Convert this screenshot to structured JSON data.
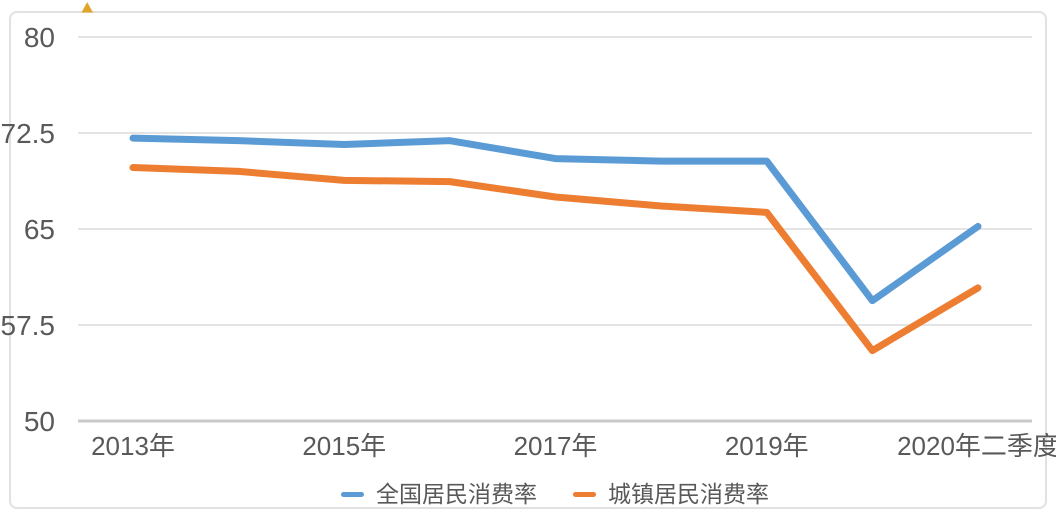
{
  "chart_data": {
    "type": "line",
    "title": "",
    "xlabel": "",
    "ylabel": "",
    "categories": [
      "2013年",
      "",
      "2015年",
      "",
      "2017年",
      "",
      "2019年",
      "",
      "2020年二季度"
    ],
    "series": [
      {
        "name": "全国居民消费率",
        "color": "#5B9BD5",
        "values": [
          72.1,
          71.9,
          71.6,
          71.9,
          70.5,
          70.3,
          70.3,
          59.4,
          65.2
        ]
      },
      {
        "name": "城镇居民消费率",
        "color": "#ED7D31",
        "values": [
          69.8,
          69.5,
          68.8,
          68.7,
          67.5,
          66.8,
          66.3,
          55.5,
          60.4
        ]
      }
    ],
    "y_ticks": [
      80,
      72.5,
      65,
      57.5,
      50
    ],
    "y_tick_labels": [
      "80",
      "72.5",
      "65",
      "57.5",
      "50"
    ],
    "ylim": [
      50,
      80
    ],
    "grid": true,
    "legend_position": "bottom"
  },
  "colors": {
    "frame": "#E1E1E1",
    "grid": "#E4E4E4",
    "axis": "#C9C9C9",
    "text": "#595959",
    "marker": "#E2A52B"
  }
}
